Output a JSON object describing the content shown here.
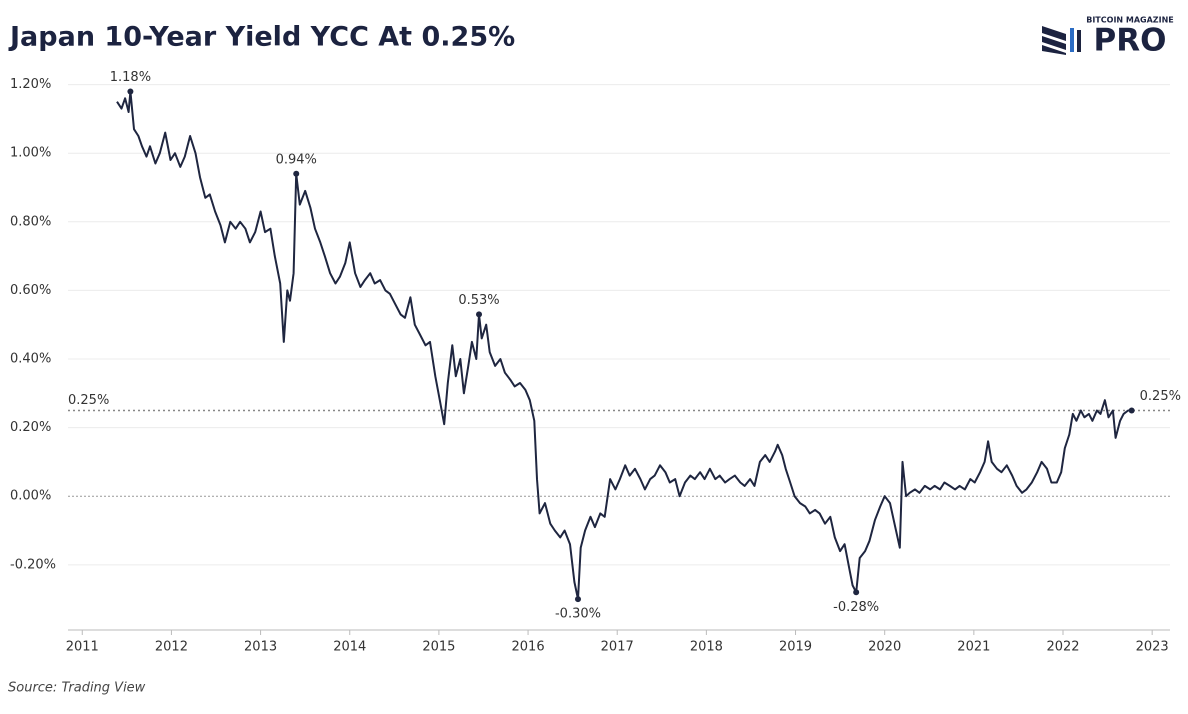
{
  "chart_data": {
    "type": "line",
    "title": "Japan 10-Year Yield YCC At 0.25%",
    "brand": {
      "top": "BITCOIN MAGAZINE",
      "main": "PRO"
    },
    "source": "Source: Trading View",
    "xlim": [
      2010.84,
      2023.2
    ],
    "xticks": [
      2011,
      2012,
      2013,
      2014,
      2015,
      2016,
      2017,
      2018,
      2019,
      2020,
      2021,
      2022,
      2023
    ],
    "ylim": [
      -0.39,
      1.26
    ],
    "yticks": [
      {
        "value": -0.2,
        "label": "-0.20%"
      },
      {
        "value": 0,
        "label": "0.00%"
      },
      {
        "value": 0.2,
        "label": "0.20%"
      },
      {
        "value": 0.4,
        "label": "0.40%"
      },
      {
        "value": 0.6,
        "label": "0.60%"
      },
      {
        "value": 0.8,
        "label": "0.80%"
      },
      {
        "value": 1.0,
        "label": "1.00%"
      },
      {
        "value": 1.2,
        "label": "1.20%"
      }
    ],
    "grid": true,
    "reference_lines": [
      {
        "value": 0.25,
        "label": "0.25%"
      }
    ],
    "annotations": [
      {
        "x": 2011.54,
        "y": 1.18,
        "label": "1.18%"
      },
      {
        "x": 2013.4,
        "y": 0.94,
        "label": "0.94%"
      },
      {
        "x": 2015.45,
        "y": 0.53,
        "label": "0.53%"
      },
      {
        "x": 2016.56,
        "y": -0.3,
        "label": "-0.30%"
      },
      {
        "x": 2019.68,
        "y": -0.28,
        "label": "-0.28%"
      },
      {
        "x": 2022.77,
        "y": 0.25,
        "label": "0.25%"
      }
    ],
    "series": [
      {
        "name": "Japan 10-Year Yield",
        "color": "#1f2640",
        "x": [
          2011.39,
          2011.44,
          2011.48,
          2011.52,
          2011.54,
          2011.58,
          2011.63,
          2011.67,
          2011.72,
          2011.76,
          2011.82,
          2011.87,
          2011.93,
          2011.99,
          2012.04,
          2012.1,
          2012.15,
          2012.21,
          2012.27,
          2012.32,
          2012.38,
          2012.43,
          2012.49,
          2012.55,
          2012.6,
          2012.66,
          2012.72,
          2012.77,
          2012.83,
          2012.88,
          2012.94,
          2013.0,
          2013.05,
          2013.11,
          2013.16,
          2013.22,
          2013.26,
          2013.3,
          2013.33,
          2013.37,
          2013.4,
          2013.44,
          2013.5,
          2013.56,
          2013.61,
          2013.67,
          2013.72,
          2013.78,
          2013.84,
          2013.89,
          2013.95,
          2014.0,
          2014.06,
          2014.12,
          2014.17,
          2014.23,
          2014.28,
          2014.34,
          2014.4,
          2014.45,
          2014.51,
          2014.57,
          2014.62,
          2014.68,
          2014.73,
          2014.79,
          2014.85,
          2014.9,
          2014.96,
          2015.01,
          2015.06,
          2015.1,
          2015.15,
          2015.19,
          2015.24,
          2015.28,
          2015.33,
          2015.37,
          2015.42,
          2015.45,
          2015.48,
          2015.53,
          2015.57,
          2015.63,
          2015.69,
          2015.74,
          2015.8,
          2015.85,
          2015.91,
          2015.97,
          2016.02,
          2016.07,
          2016.1,
          2016.13,
          2016.19,
          2016.25,
          2016.3,
          2016.36,
          2016.41,
          2016.47,
          2016.52,
          2016.56,
          2016.59,
          2016.64,
          2016.7,
          2016.75,
          2016.81,
          2016.86,
          2016.92,
          2016.98,
          2017.03,
          2017.09,
          2017.14,
          2017.2,
          2017.26,
          2017.31,
          2017.37,
          2017.42,
          2017.48,
          2017.54,
          2017.59,
          2017.65,
          2017.7,
          2017.76,
          2017.82,
          2017.87,
          2017.93,
          2017.98,
          2018.04,
          2018.1,
          2018.15,
          2018.21,
          2018.26,
          2018.32,
          2018.38,
          2018.43,
          2018.49,
          2018.54,
          2018.6,
          2018.66,
          2018.71,
          2018.77,
          2018.8,
          2018.85,
          2018.89,
          2018.94,
          2018.99,
          2019.05,
          2019.11,
          2019.16,
          2019.22,
          2019.27,
          2019.33,
          2019.39,
          2019.44,
          2019.5,
          2019.55,
          2019.61,
          2019.64,
          2019.68,
          2019.72,
          2019.78,
          2019.83,
          2019.89,
          2019.95,
          2020.0,
          2020.06,
          2020.11,
          2020.17,
          2020.2,
          2020.24,
          2020.28,
          2020.34,
          2020.39,
          2020.45,
          2020.51,
          2020.56,
          2020.62,
          2020.67,
          2020.73,
          2020.79,
          2020.84,
          2020.9,
          2020.96,
          2021.01,
          2021.07,
          2021.12,
          2021.16,
          2021.2,
          2021.26,
          2021.31,
          2021.37,
          2021.43,
          2021.48,
          2021.54,
          2021.59,
          2021.65,
          2021.71,
          2021.76,
          2021.82,
          2021.87,
          2021.93,
          2021.98,
          2022.02,
          2022.07,
          2022.11,
          2022.15,
          2022.2,
          2022.24,
          2022.29,
          2022.33,
          2022.38,
          2022.42,
          2022.47,
          2022.51,
          2022.56,
          2022.59,
          2022.64,
          2022.68,
          2022.73,
          2022.77
        ],
        "values": [
          1.15,
          1.13,
          1.16,
          1.12,
          1.18,
          1.07,
          1.05,
          1.02,
          0.99,
          1.02,
          0.97,
          1.0,
          1.06,
          0.98,
          1.0,
          0.96,
          0.99,
          1.05,
          1.0,
          0.93,
          0.87,
          0.88,
          0.83,
          0.79,
          0.74,
          0.8,
          0.78,
          0.8,
          0.78,
          0.74,
          0.77,
          0.83,
          0.77,
          0.78,
          0.7,
          0.62,
          0.45,
          0.6,
          0.57,
          0.65,
          0.94,
          0.85,
          0.89,
          0.84,
          0.78,
          0.74,
          0.7,
          0.65,
          0.62,
          0.64,
          0.68,
          0.74,
          0.65,
          0.61,
          0.63,
          0.65,
          0.62,
          0.63,
          0.6,
          0.59,
          0.56,
          0.53,
          0.52,
          0.58,
          0.5,
          0.47,
          0.44,
          0.45,
          0.35,
          0.28,
          0.21,
          0.33,
          0.44,
          0.35,
          0.4,
          0.3,
          0.38,
          0.45,
          0.4,
          0.53,
          0.46,
          0.5,
          0.42,
          0.38,
          0.4,
          0.36,
          0.34,
          0.32,
          0.33,
          0.31,
          0.28,
          0.22,
          0.05,
          -0.05,
          -0.02,
          -0.08,
          -0.1,
          -0.12,
          -0.1,
          -0.14,
          -0.25,
          -0.3,
          -0.15,
          -0.1,
          -0.06,
          -0.09,
          -0.05,
          -0.06,
          0.05,
          0.02,
          0.05,
          0.09,
          0.06,
          0.08,
          0.05,
          0.02,
          0.05,
          0.06,
          0.09,
          0.07,
          0.04,
          0.05,
          0.0,
          0.04,
          0.06,
          0.05,
          0.07,
          0.05,
          0.08,
          0.05,
          0.06,
          0.04,
          0.05,
          0.06,
          0.04,
          0.03,
          0.05,
          0.03,
          0.1,
          0.12,
          0.1,
          0.13,
          0.15,
          0.12,
          0.08,
          0.04,
          0.0,
          -0.02,
          -0.03,
          -0.05,
          -0.04,
          -0.05,
          -0.08,
          -0.06,
          -0.12,
          -0.16,
          -0.14,
          -0.22,
          -0.26,
          -0.28,
          -0.18,
          -0.16,
          -0.13,
          -0.07,
          -0.03,
          0.0,
          -0.02,
          -0.08,
          -0.15,
          0.1,
          0.0,
          0.01,
          0.02,
          0.01,
          0.03,
          0.02,
          0.03,
          0.02,
          0.04,
          0.03,
          0.02,
          0.03,
          0.02,
          0.05,
          0.04,
          0.07,
          0.1,
          0.16,
          0.1,
          0.08,
          0.07,
          0.09,
          0.06,
          0.03,
          0.01,
          0.02,
          0.04,
          0.07,
          0.1,
          0.08,
          0.04,
          0.04,
          0.07,
          0.14,
          0.18,
          0.24,
          0.22,
          0.25,
          0.23,
          0.24,
          0.22,
          0.25,
          0.24,
          0.28,
          0.23,
          0.25,
          0.17,
          0.22,
          0.24,
          0.25,
          0.25
        ]
      }
    ]
  }
}
